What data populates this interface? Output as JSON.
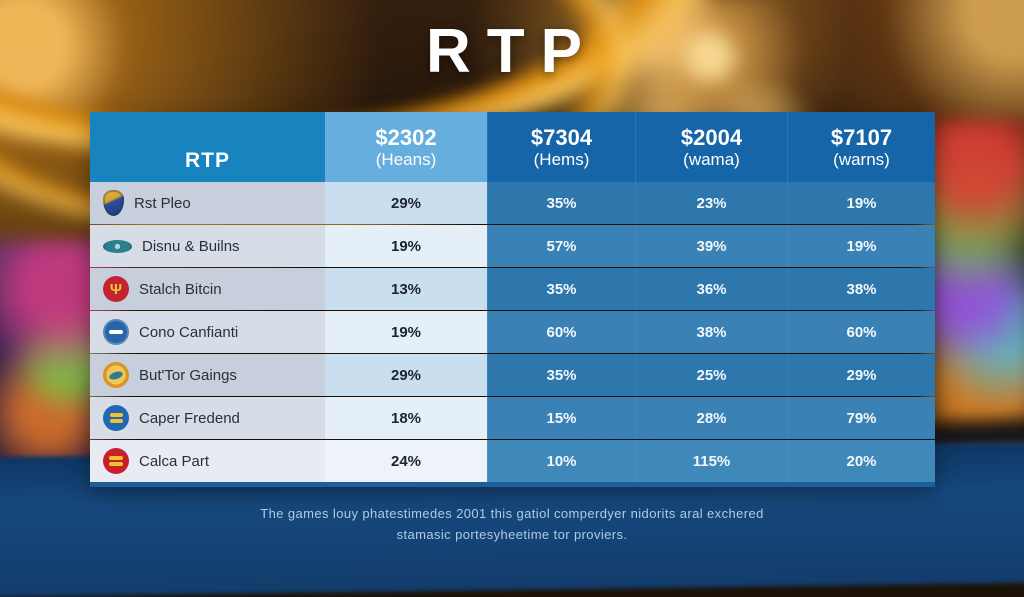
{
  "title": "RTP",
  "colors": {
    "header_primary": "#1884bf",
    "header_light": "#66aedd",
    "header_dark": "#1565a8",
    "value_cell_blue": "#2d77ad",
    "accent_gold": "#e8940f",
    "bottom_blue": "#17497e"
  },
  "chart_data": {
    "type": "table",
    "title": "RTP",
    "columns": [
      {
        "line1": "RTP",
        "line2": ""
      },
      {
        "line1": "$2302",
        "line2": "(Heans)"
      },
      {
        "line1": "$7304",
        "line2": "(Hems)"
      },
      {
        "line1": "$2004",
        "line2": "(wama)"
      },
      {
        "line1": "$7107",
        "line2": "(warns)"
      }
    ],
    "rows": [
      {
        "name": "Rst Pleo",
        "icon": "shield-crest",
        "values": [
          "29%",
          "35%",
          "23%",
          "19%"
        ]
      },
      {
        "name": "Disnu & Builns",
        "icon": "teal-eye",
        "values": [
          "19%",
          "57%",
          "39%",
          "19%"
        ]
      },
      {
        "name": "Stalch Bitcin",
        "icon": "red-trident",
        "values": [
          "13%",
          "35%",
          "36%",
          "38%"
        ]
      },
      {
        "name": "Cono Canfianti",
        "icon": "blue-badge",
        "values": [
          "19%",
          "60%",
          "38%",
          "60%"
        ]
      },
      {
        "name": "But'Tor Gaings",
        "icon": "gold-fish",
        "values": [
          "29%",
          "35%",
          "25%",
          "29%"
        ]
      },
      {
        "name": "Caper Fredend",
        "icon": "blue-gold-badge",
        "values": [
          "18%",
          "15%",
          "28%",
          "79%"
        ]
      },
      {
        "name": "Calca Part",
        "icon": "red-gold-badge",
        "values": [
          "24%",
          "10%",
          "115%",
          "20%"
        ]
      }
    ]
  },
  "footer": {
    "line1": "The games louy phatestimedes 2001 this gatiol comperdyer nidorits aral exchered",
    "line2": "stamasic portesyheetime tor proviers."
  }
}
